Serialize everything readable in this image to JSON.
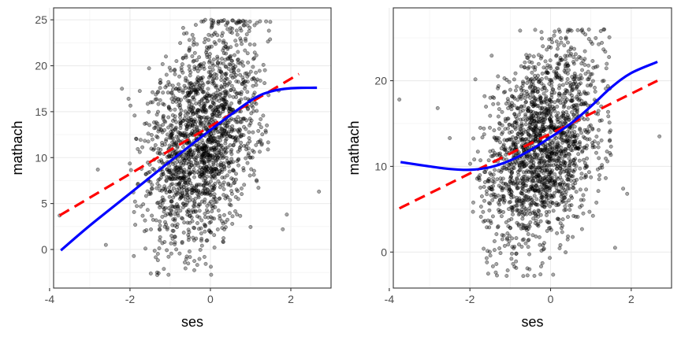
{
  "chart_data": [
    {
      "type": "scatter",
      "title": "",
      "xlabel": "ses",
      "ylabel": "mathach",
      "xlim": [
        -3.9,
        3.0
      ],
      "ylim": [
        -4.2,
        26.3
      ],
      "xticks": [
        -4,
        -2,
        0,
        2
      ],
      "yticks": [
        0,
        5,
        10,
        15,
        20,
        25
      ],
      "grid": true,
      "legend": "none",
      "points": {
        "description_free": true,
        "cloud": {
          "x_range": [
            -2.3,
            1.5
          ],
          "y_range": [
            -2.8,
            25.0
          ],
          "center_x": 0.0,
          "slope": 3.0,
          "intercept": 12.8
        },
        "outliers": [
          {
            "x": -3.75,
            "y": 3.7
          },
          {
            "x": -2.8,
            "y": 8.7
          },
          {
            "x": -2.2,
            "y": 17.5
          },
          {
            "x": 1.8,
            "y": 2.2
          },
          {
            "x": 1.9,
            "y": 3.8
          },
          {
            "x": 2.7,
            "y": 6.3
          },
          {
            "x": -2.6,
            "y": 0.5
          },
          {
            "x": 1.7,
            "y": 17.3
          }
        ],
        "color": "#000000",
        "alpha": 0.35
      },
      "series": [
        {
          "kind": "linear-fit",
          "color": "#ff0000",
          "dash": "dashed",
          "x": [
            -3.75,
            2.2
          ],
          "y": [
            3.7,
            19.1
          ]
        },
        {
          "kind": "smooth",
          "color": "#0000ff",
          "dash": "solid",
          "x": [
            -3.72,
            -3.0,
            -2.0,
            -1.0,
            0.0,
            1.0,
            1.5,
            2.0,
            2.5,
            2.65
          ],
          "y": [
            -0.1,
            2.6,
            6.1,
            9.6,
            13.0,
            16.2,
            17.2,
            17.55,
            17.6,
            17.6
          ]
        }
      ]
    },
    {
      "type": "scatter",
      "title": "",
      "xlabel": "ses",
      "ylabel": "mathach",
      "xlim": [
        -3.9,
        3.0
      ],
      "ylim": [
        -4.2,
        28.5
      ],
      "xticks": [
        -4,
        -2,
        0,
        2
      ],
      "yticks": [
        0,
        10,
        20
      ],
      "grid": true,
      "legend": "none",
      "points": {
        "cloud": {
          "x_range": [
            -2.0,
            1.5
          ],
          "y_range": [
            -2.8,
            26.0
          ],
          "center_x": 0.0,
          "slope": 2.7,
          "intercept": 12.9
        },
        "outliers": [
          {
            "x": -3.75,
            "y": 17.8
          },
          {
            "x": -2.8,
            "y": 16.8
          },
          {
            "x": -2.5,
            "y": 13.3
          },
          {
            "x": 1.8,
            "y": 7.4
          },
          {
            "x": 1.9,
            "y": 6.8
          },
          {
            "x": 2.7,
            "y": 13.5
          },
          {
            "x": 1.6,
            "y": 0.5
          }
        ],
        "color": "#000000",
        "alpha": 0.35
      },
      "series": [
        {
          "kind": "linear-fit",
          "color": "#ff0000",
          "dash": "dashed",
          "x": [
            -3.75,
            2.65
          ],
          "y": [
            5.1,
            20.0
          ]
        },
        {
          "kind": "smooth",
          "color": "#0000ff",
          "dash": "solid",
          "x": [
            -3.72,
            -3.0,
            -2.5,
            -2.0,
            -1.5,
            -1.0,
            -0.5,
            0.0,
            0.5,
            1.0,
            1.5,
            2.0,
            2.65
          ],
          "y": [
            10.5,
            10.0,
            9.7,
            9.6,
            9.9,
            10.7,
            11.9,
            13.4,
            15.0,
            17.0,
            19.2,
            20.9,
            22.2
          ]
        }
      ]
    }
  ]
}
